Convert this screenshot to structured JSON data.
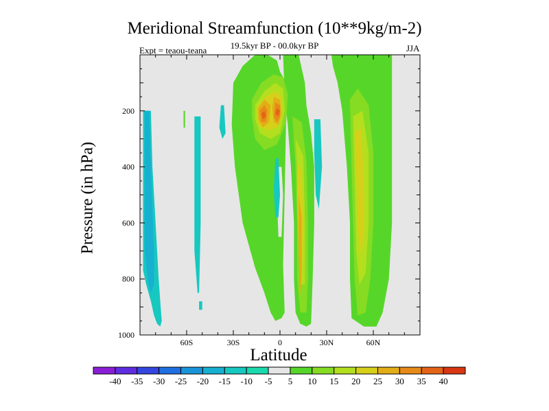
{
  "chart_data": {
    "type": "heatmap",
    "title": "Meridional Streamfunction (10**9kg/m-2)",
    "subtitle_left": "Expt = teaou-teana",
    "subtitle_center": "19.5kyr BP - 00.0kyr BP",
    "subtitle_right": "JJA",
    "xlabel": "Latitude",
    "ylabel": "Pressure (in hPa)",
    "xlim": [
      -90,
      90
    ],
    "ylim": [
      1000,
      0
    ],
    "x_ticks": [
      {
        "value": -60,
        "label": "60S"
      },
      {
        "value": -30,
        "label": "30S"
      },
      {
        "value": 0,
        "label": "0"
      },
      {
        "value": 30,
        "label": "30N"
      },
      {
        "value": 60,
        "label": "60N"
      }
    ],
    "y_ticks": [
      {
        "value": 200,
        "label": "200"
      },
      {
        "value": 400,
        "label": "400"
      },
      {
        "value": 600,
        "label": "600"
      },
      {
        "value": 800,
        "label": "800"
      },
      {
        "value": 1000,
        "label": "1000"
      }
    ],
    "colorbar": {
      "labels": [
        "-40",
        "-35",
        "-30",
        "-25",
        "-20",
        "-15",
        "-10",
        "-5",
        "5",
        "10",
        "15",
        "20",
        "25",
        "30",
        "35",
        "40"
      ],
      "colors": [
        "#8a1ed6",
        "#5f2de0",
        "#3346e0",
        "#1f6fe0",
        "#1a94d8",
        "#18b0d0",
        "#16c8c0",
        "#1ad9ad",
        "#e6e6e6",
        "#57d62a",
        "#86dc22",
        "#b3df1e",
        "#d6d01a",
        "#e3ad18",
        "#e68a18",
        "#e36416",
        "#d93614"
      ]
    },
    "background_color": "#e6e6e6",
    "contour_regions": [
      {
        "level": -10,
        "color": "#16c8c0",
        "points": [
          [
            -88,
            20
          ],
          [
            -83,
            20
          ],
          [
            -82,
            40
          ],
          [
            -80,
            60
          ],
          [
            -78,
            80
          ],
          [
            -77,
            88
          ],
          [
            -76,
            95
          ],
          [
            -77,
            97
          ],
          [
            -79,
            96
          ],
          [
            -81,
            93
          ],
          [
            -83,
            88
          ],
          [
            -86,
            82
          ],
          [
            -88,
            77
          ]
        ]
      },
      {
        "level": -15,
        "color": "#18b0d0",
        "points": [
          [
            -87,
            20
          ],
          [
            -84,
            20
          ],
          [
            -83,
            40
          ],
          [
            -82,
            55
          ],
          [
            -81,
            70
          ],
          [
            -81,
            82
          ],
          [
            -83,
            85
          ],
          [
            -85,
            80
          ],
          [
            -87,
            70
          ]
        ]
      },
      {
        "level": -10,
        "color": "#16c8c0",
        "points": [
          [
            -55,
            22
          ],
          [
            -51,
            22
          ],
          [
            -51,
            60
          ],
          [
            -52,
            85
          ],
          [
            -53,
            85
          ],
          [
            -55,
            70
          ]
        ]
      },
      {
        "level": -10,
        "color": "#16c8c0",
        "points": [
          [
            -38,
            18
          ],
          [
            -36,
            18
          ],
          [
            -35,
            28
          ],
          [
            -37,
            30
          ],
          [
            -39,
            26
          ]
        ]
      },
      {
        "level": -10,
        "color": "#16c8c0",
        "points": [
          [
            -52,
            88
          ],
          [
            -50,
            88
          ],
          [
            -50,
            91
          ],
          [
            -52,
            91
          ]
        ]
      },
      {
        "level": 5,
        "color": "#57d62a",
        "points": [
          [
            -62,
            20
          ],
          [
            -61,
            20
          ],
          [
            -61,
            26
          ],
          [
            -62,
            26
          ]
        ]
      },
      {
        "level": 5,
        "color": "#57d62a",
        "points": [
          [
            -30,
            10
          ],
          [
            -24,
            4
          ],
          [
            -16,
            0
          ],
          [
            -8,
            0
          ],
          [
            -2,
            2
          ],
          [
            0,
            6
          ],
          [
            4,
            10
          ],
          [
            6,
            14
          ],
          [
            4,
            20
          ],
          [
            3,
            50
          ],
          [
            2,
            75
          ],
          [
            3,
            92
          ],
          [
            1,
            94
          ],
          [
            -3,
            95
          ],
          [
            -6,
            92
          ],
          [
            -10,
            85
          ],
          [
            -16,
            76
          ],
          [
            -24,
            60
          ],
          [
            -29,
            40
          ],
          [
            -31,
            25
          ]
        ]
      },
      {
        "level": 5,
        "color": "#57d62a",
        "points": [
          [
            2,
            0
          ],
          [
            12,
            0
          ],
          [
            16,
            10
          ],
          [
            17,
            18
          ],
          [
            20,
            28
          ],
          [
            22,
            40
          ],
          [
            22,
            60
          ],
          [
            21,
            80
          ],
          [
            20,
            96
          ],
          [
            17,
            97
          ],
          [
            13,
            96
          ],
          [
            10,
            92
          ],
          [
            9,
            80
          ],
          [
            9,
            60
          ],
          [
            7,
            40
          ],
          [
            5,
            25
          ],
          [
            3,
            15
          ]
        ]
      },
      {
        "level": 5,
        "color": "#57d62a",
        "points": [
          [
            33,
            0
          ],
          [
            72,
            0
          ],
          [
            72,
            60
          ],
          [
            70,
            80
          ],
          [
            66,
            92
          ],
          [
            62,
            97
          ],
          [
            54,
            97
          ],
          [
            46,
            94
          ],
          [
            45,
            80
          ],
          [
            45,
            60
          ],
          [
            43,
            40
          ],
          [
            40,
            20
          ],
          [
            37,
            10
          ],
          [
            34,
            4
          ]
        ]
      },
      {
        "level": -5,
        "color": "#e6e6e6",
        "points": [
          [
            -1,
            40
          ],
          [
            1,
            40
          ],
          [
            2,
            50
          ],
          [
            1,
            65
          ],
          [
            -1,
            65
          ],
          [
            -2,
            50
          ]
        ]
      },
      {
        "level": -10,
        "color": "#16c8c0",
        "points": [
          [
            -3,
            37
          ],
          [
            -1,
            37
          ],
          [
            0,
            50
          ],
          [
            -1,
            58
          ],
          [
            -3,
            58
          ],
          [
            -4,
            48
          ]
        ]
      },
      {
        "level": -10,
        "color": "#16c8c0",
        "points": [
          [
            22,
            23
          ],
          [
            26,
            23
          ],
          [
            27,
            40
          ],
          [
            25,
            55
          ],
          [
            23,
            50
          ],
          [
            22,
            35
          ]
        ]
      },
      {
        "level": 10,
        "color": "#86dc22",
        "points": [
          [
            -18,
            16
          ],
          [
            -12,
            10
          ],
          [
            -4,
            7
          ],
          [
            2,
            8
          ],
          [
            5,
            14
          ],
          [
            4,
            24
          ],
          [
            -2,
            32
          ],
          [
            -10,
            34
          ],
          [
            -16,
            30
          ],
          [
            -18,
            22
          ]
        ]
      },
      {
        "level": 10,
        "color": "#86dc22",
        "points": [
          [
            8,
            22
          ],
          [
            14,
            24
          ],
          [
            17,
            38
          ],
          [
            18,
            60
          ],
          [
            18,
            80
          ],
          [
            17,
            92
          ],
          [
            13,
            92
          ],
          [
            11,
            80
          ],
          [
            11,
            60
          ],
          [
            10,
            40
          ]
        ]
      },
      {
        "level": 10,
        "color": "#86dc22",
        "points": [
          [
            45,
            16
          ],
          [
            50,
            12
          ],
          [
            57,
            18
          ],
          [
            60,
            35
          ],
          [
            60,
            60
          ],
          [
            58,
            80
          ],
          [
            55,
            92
          ],
          [
            50,
            93
          ],
          [
            48,
            80
          ],
          [
            47,
            60
          ],
          [
            46,
            40
          ]
        ]
      },
      {
        "level": 15,
        "color": "#b3df1e",
        "points": [
          [
            -16,
            18
          ],
          [
            -10,
            13
          ],
          [
            -3,
            10
          ],
          [
            2,
            12
          ],
          [
            3,
            20
          ],
          [
            0,
            28
          ],
          [
            -6,
            30
          ],
          [
            -13,
            28
          ],
          [
            -16,
            23
          ]
        ]
      },
      {
        "level": 15,
        "color": "#b3df1e",
        "points": [
          [
            10,
            30
          ],
          [
            15,
            36
          ],
          [
            16,
            60
          ],
          [
            16,
            82
          ],
          [
            13,
            82
          ],
          [
            12,
            60
          ],
          [
            11,
            40
          ]
        ]
      },
      {
        "level": 15,
        "color": "#b3df1e",
        "points": [
          [
            47,
            22
          ],
          [
            53,
            20
          ],
          [
            57,
            35
          ],
          [
            57,
            60
          ],
          [
            55,
            78
          ],
          [
            51,
            82
          ],
          [
            49,
            70
          ],
          [
            48,
            45
          ]
        ]
      },
      {
        "level": 20,
        "color": "#d6d01a",
        "points": [
          [
            -15,
            19
          ],
          [
            -9,
            15
          ],
          [
            -3,
            13
          ],
          [
            1,
            15
          ],
          [
            1,
            22
          ],
          [
            -2,
            26
          ],
          [
            -8,
            27
          ],
          [
            -14,
            25
          ]
        ]
      },
      {
        "level": 20,
        "color": "#d6d01a",
        "points": [
          [
            11,
            38
          ],
          [
            14,
            42
          ],
          [
            15,
            60
          ],
          [
            14,
            80
          ],
          [
            13,
            84
          ],
          [
            12,
            70
          ],
          [
            11,
            50
          ]
        ]
      },
      {
        "level": 20,
        "color": "#d6d01a",
        "points": [
          [
            48,
            28
          ],
          [
            52,
            26
          ],
          [
            54,
            45
          ],
          [
            54,
            65
          ],
          [
            52,
            72
          ],
          [
            50,
            62
          ],
          [
            49,
            40
          ]
        ]
      },
      {
        "level": 25,
        "color": "#e3ad18",
        "points": [
          [
            -14,
            19
          ],
          [
            -10,
            16
          ],
          [
            -6,
            18
          ],
          [
            -7,
            24
          ],
          [
            -11,
            26
          ],
          [
            -14,
            23
          ]
        ]
      },
      {
        "level": 25,
        "color": "#e3ad18",
        "points": [
          [
            -4,
            15
          ],
          [
            0,
            16
          ],
          [
            1,
            21
          ],
          [
            -1,
            25
          ],
          [
            -4,
            24
          ],
          [
            -5,
            19
          ]
        ]
      },
      {
        "level": 25,
        "color": "#e3ad18",
        "points": [
          [
            12,
            50
          ],
          [
            14,
            58
          ],
          [
            14,
            78
          ],
          [
            13,
            86
          ],
          [
            12,
            72
          ]
        ]
      },
      {
        "level": 30,
        "color": "#e68a18",
        "points": [
          [
            -13,
            20
          ],
          [
            -10,
            18
          ],
          [
            -8,
            20
          ],
          [
            -9,
            24
          ],
          [
            -12,
            24
          ]
        ]
      },
      {
        "level": 30,
        "color": "#e68a18",
        "points": [
          [
            -3,
            17
          ],
          [
            0,
            18
          ],
          [
            0,
            22
          ],
          [
            -2,
            24
          ],
          [
            -4,
            22
          ]
        ]
      },
      {
        "level": 35,
        "color": "#e36416",
        "points": [
          [
            -12,
            21
          ],
          [
            -10,
            20
          ],
          [
            -9,
            22
          ],
          [
            -11,
            23
          ]
        ]
      },
      {
        "level": 35,
        "color": "#e36416",
        "points": [
          [
            -2,
            19
          ],
          [
            0,
            20
          ],
          [
            -1,
            22
          ],
          [
            -3,
            21
          ]
        ]
      }
    ]
  }
}
